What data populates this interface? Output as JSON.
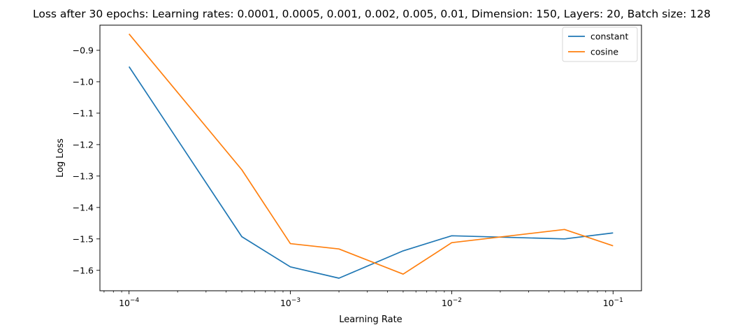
{
  "chart_data": {
    "type": "line",
    "title": "Loss after 30 epochs: Learning rates: 0.0001, 0.0005, 0.001, 0.002, 0.005, 0.01, Dimension: 150, Layers: 20, Batch size: 128",
    "xlabel": "Learning Rate",
    "ylabel": "Log Loss",
    "xscale": "log",
    "xlim": [
      6.6e-05,
      0.15
    ],
    "ylim": [
      -1.665,
      -0.82
    ],
    "x": [
      0.0001,
      0.0005,
      0.001,
      0.002,
      0.005,
      0.01,
      0.05,
      0.1
    ],
    "series": [
      {
        "name": "constant",
        "color": "#1f77b4",
        "values": [
          -0.952,
          -1.493,
          -1.589,
          -1.625,
          -1.538,
          -1.49,
          -1.5,
          -1.481
        ]
      },
      {
        "name": "cosine",
        "color": "#ff7f0e",
        "values": [
          -0.848,
          -1.28,
          -1.515,
          -1.532,
          -1.612,
          -1.512,
          -1.47,
          -1.522
        ]
      }
    ],
    "xticks": [
      {
        "value": 0.0001,
        "base": "10",
        "exp": "−4"
      },
      {
        "value": 0.001,
        "base": "10",
        "exp": "−3"
      },
      {
        "value": 0.01,
        "base": "10",
        "exp": "−2"
      },
      {
        "value": 0.1,
        "base": "10",
        "exp": "−1"
      }
    ],
    "yticks": [
      {
        "value": -0.9,
        "label": "−0.9"
      },
      {
        "value": -1.0,
        "label": "−1.0"
      },
      {
        "value": -1.1,
        "label": "−1.1"
      },
      {
        "value": -1.2,
        "label": "−1.2"
      },
      {
        "value": -1.3,
        "label": "−1.3"
      },
      {
        "value": -1.4,
        "label": "−1.4"
      },
      {
        "value": -1.5,
        "label": "−1.5"
      },
      {
        "value": -1.6,
        "label": "−1.6"
      }
    ],
    "grid": false,
    "legend": "top-right"
  }
}
